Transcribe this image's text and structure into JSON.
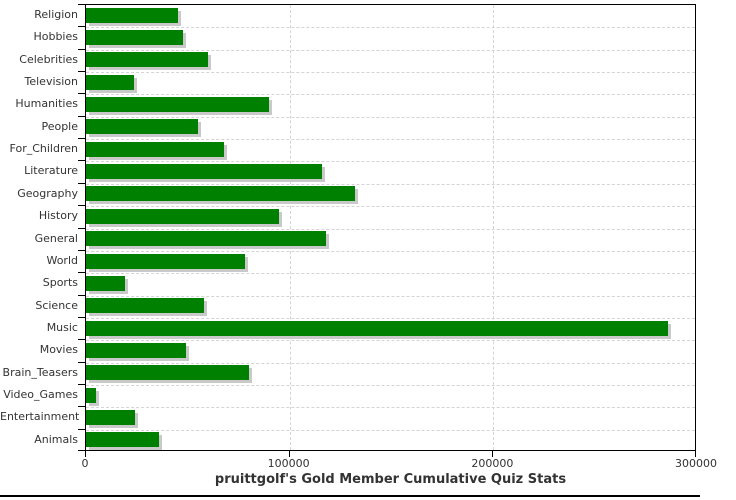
{
  "chart_data": {
    "type": "bar",
    "orientation": "horizontal",
    "title": "pruittgolf's Gold Member Cumulative Quiz Stats",
    "categories": [
      "Religion",
      "Hobbies",
      "Celebrities",
      "Television",
      "Humanities",
      "People",
      "For_Children",
      "Literature",
      "Geography",
      "History",
      "General",
      "World",
      "Sports",
      "Science",
      "Music",
      "Movies",
      "Brain_Teasers",
      "Video_Games",
      "Entertainment",
      "Animals"
    ],
    "values": [
      45000,
      47500,
      60000,
      23500,
      90000,
      55000,
      68000,
      116000,
      132000,
      95000,
      118000,
      78000,
      19000,
      58000,
      286000,
      49000,
      80000,
      5000,
      24000,
      36000
    ],
    "xlim": [
      0,
      300000
    ],
    "xticks": [
      0,
      100000,
      200000,
      300000
    ],
    "xtick_labels": [
      "0",
      "100000",
      "200000",
      "300000"
    ],
    "grid": "dashed",
    "legend": "none",
    "bar_color": "#008000",
    "bar_shadow_color": "#c9c9c9",
    "gridline_color": "#d4d4d4",
    "axis_color": "#000000",
    "label_color": "#333333",
    "background": "#ffffff"
  }
}
